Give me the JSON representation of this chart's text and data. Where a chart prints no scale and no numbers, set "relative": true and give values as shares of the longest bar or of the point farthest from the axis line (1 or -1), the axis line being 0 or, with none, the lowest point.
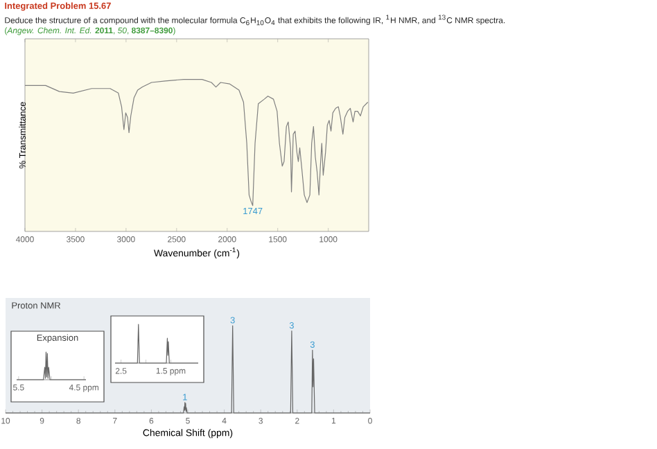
{
  "chart_data": [
    {
      "type": "line",
      "title": "Integrated Problem 15.67",
      "subtitle": "Deduce the structure of a compound with the molecular formula C$_{6}$H$_{10}$O$_{4}$ that exhibits the following IR, $^{1}$H NMR, and $^{13}$C NMR spectra.",
      "xlabel": "Wavenumber (cm$^{-1}$)",
      "ylabel": "% Transmittance",
      "relative": true,
      "tick_labels": "x",
      "xlim": [
        4000,
        600
      ],
      "xticks": [
        4000,
        3500,
        3000,
        2500,
        2000,
        1500,
        1000
      ],
      "annotations": [
        "(*Angew. Chem. Int. Ed.* **2011**, *50*, **8387–8390**)",
        {
          "text": "1747",
          "x": 1747,
          "y": 0.17
        }
      ],
      "color": "#808080",
      "x": [
        4000,
        3795,
        3659,
        3522,
        3340,
        3158,
        3076,
        3044,
        3021,
        3003,
        2985,
        2971,
        2953,
        2921,
        2885,
        2839,
        2748,
        2612,
        2430,
        2248,
        2156,
        2111,
        2065,
        1974,
        1883,
        1838,
        1806,
        1783,
        1765,
        1747,
        1724,
        1692,
        1633,
        1597,
        1542,
        1506,
        1483,
        1455,
        1437,
        1414,
        1396,
        1373,
        1364,
        1346,
        1328,
        1310,
        1296,
        1282,
        1264,
        1237,
        1210,
        1182,
        1164,
        1146,
        1128,
        1110,
        1092,
        1078,
        1064,
        1050,
        1027,
        1009,
        991,
        973,
        955,
        927,
        900,
        882,
        855,
        836,
        809,
        782,
        754,
        736,
        709,
        682,
        654,
        609
      ],
      "values": [
        0.96,
        0.96,
        0.92,
        0.91,
        0.94,
        0.94,
        0.91,
        0.82,
        0.67,
        0.78,
        0.75,
        0.65,
        0.76,
        0.88,
        0.93,
        0.95,
        0.98,
        0.99,
        1.0,
        1.0,
        0.98,
        0.95,
        0.98,
        0.97,
        0.93,
        0.85,
        0.58,
        0.24,
        0.2,
        0.17,
        0.58,
        0.84,
        0.87,
        0.89,
        0.87,
        0.79,
        0.58,
        0.43,
        0.46,
        0.69,
        0.72,
        0.55,
        0.26,
        0.64,
        0.66,
        0.52,
        0.46,
        0.55,
        0.43,
        0.24,
        0.19,
        0.24,
        0.58,
        0.69,
        0.49,
        0.39,
        0.24,
        0.43,
        0.58,
        0.37,
        0.52,
        0.7,
        0.73,
        0.66,
        0.78,
        0.81,
        0.82,
        0.76,
        0.64,
        0.75,
        0.79,
        0.81,
        0.72,
        0.79,
        0.79,
        0.76,
        0.82,
        0.85
      ]
    },
    {
      "type": "line",
      "title": "Proton NMR",
      "xlabel": "Chemical Shift (ppm)",
      "relative": true,
      "tick_labels": "x",
      "xlim": [
        10,
        0
      ],
      "xticks": [
        10,
        9,
        8,
        7,
        6,
        5,
        4,
        3,
        2,
        1,
        0
      ],
      "annotations": [
        {
          "text": "1",
          "x": 5.08,
          "y": 0.12
        },
        {
          "text": "3",
          "x": 3.77,
          "y": 1
        },
        {
          "text": "3",
          "x": 2.15,
          "y": 0.94
        },
        {
          "text": "3",
          "x": 1.58,
          "y": 0.72
        }
      ],
      "color": "#666666",
      "x": [
        10,
        5.12,
        5.1,
        5.09,
        5.08,
        5.07,
        5.06,
        5.05,
        5.04,
        5.02,
        3.8,
        3.77,
        3.74,
        2.18,
        2.15,
        2.12,
        1.6,
        1.58,
        1.565,
        1.55,
        1.52,
        0
      ],
      "values": [
        0,
        0,
        0.07,
        0.03,
        0.12,
        0.04,
        0.11,
        0.02,
        0.06,
        0,
        0,
        1,
        0,
        0,
        0.94,
        0,
        0,
        0.72,
        0.3,
        0.62,
        0,
        0
      ]
    },
    {
      "type": "line",
      "title": "Expansion",
      "relative": true,
      "tick_labels": "x",
      "xlim": [
        5.53,
        4.47
      ],
      "xticks": [
        {
          "value": 5.5,
          "label": "5.5"
        },
        {
          "value": 5.0,
          "label": null
        },
        {
          "value": 4.5,
          "label": "4.5 ppm"
        }
      ],
      "color": "#666666",
      "x": [
        5.53,
        5.12,
        5.1,
        5.09,
        5.08,
        5.07,
        5.06,
        5.05,
        5.04,
        5.02,
        4.47
      ],
      "values": [
        0,
        0,
        0.45,
        0.05,
        1,
        0.1,
        0.95,
        0.05,
        0.45,
        0,
        0
      ]
    },
    {
      "type": "line",
      "relative": true,
      "tick_labels": "x",
      "xlim": [
        2.62,
        0.95
      ],
      "xticks": [
        {
          "value": 2.5,
          "label": "2.5"
        },
        {
          "value": 2.0,
          "label": null
        },
        {
          "value": 1.5,
          "label": "1.5 ppm"
        }
      ],
      "color": "#666666",
      "x": [
        2.62,
        2.17,
        2.15,
        2.13,
        1.59,
        1.57,
        1.56,
        1.55,
        1.53,
        0.95
      ],
      "values": [
        0,
        0,
        1,
        0,
        0,
        0.64,
        0.2,
        0.55,
        0,
        0
      ]
    }
  ]
}
